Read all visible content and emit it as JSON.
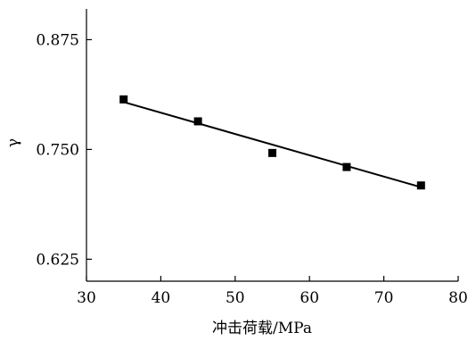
{
  "chart_data": {
    "type": "scatter",
    "title": "",
    "xlabel": "冲击荷载/MPa",
    "ylabel": "γ",
    "xlim": [
      30,
      80
    ],
    "ylim": [
      0.6,
      0.91
    ],
    "x_ticks": [
      30,
      40,
      50,
      60,
      70,
      80
    ],
    "y_ticks": [
      0.625,
      0.75,
      0.875
    ],
    "x_tick_labels": [
      "30",
      "40",
      "50",
      "60",
      "70",
      "80"
    ],
    "y_tick_labels": [
      "0.625",
      "0.750",
      "0.875"
    ],
    "grid": false,
    "legend": "none",
    "marker": "square",
    "series": [
      {
        "x": [
          35,
          45,
          55,
          65,
          75
        ],
        "y": [
          0.807,
          0.782,
          0.746,
          0.73,
          0.709
        ]
      }
    ],
    "fit_line": {
      "x": [
        35,
        75
      ],
      "y": [
        0.804,
        0.707
      ]
    },
    "colors": {
      "marks": "#000000",
      "background": "#ffffff"
    }
  }
}
